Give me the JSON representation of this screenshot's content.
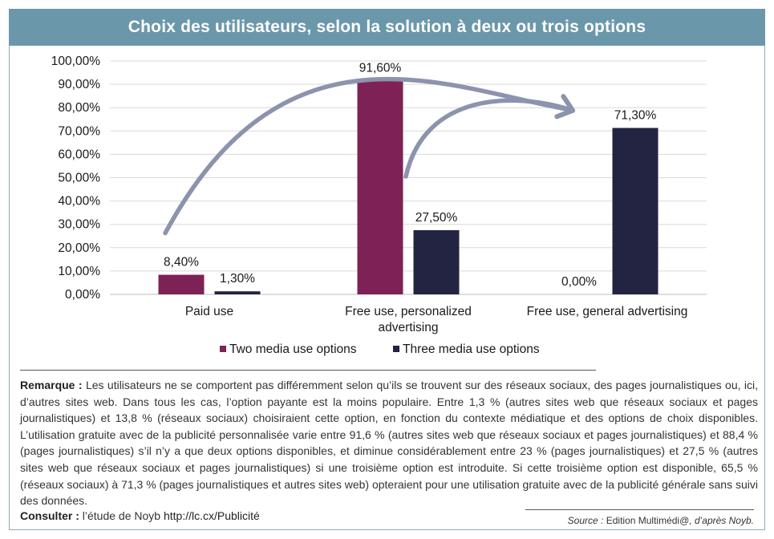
{
  "header": {
    "title": "Choix des utilisateurs, selon la solution à deux ou trois options"
  },
  "chart_data": {
    "type": "bar",
    "categories": [
      "Paid use",
      "Free use, personalized|advertising",
      "Free use, general advertising"
    ],
    "series": [
      {
        "name": "Two media use options",
        "color": "#7e2157",
        "values": [
          8.4,
          91.6,
          null
        ],
        "labels": [
          "8,40%",
          "91,60%",
          "0,00%"
        ]
      },
      {
        "name": "Three media use options",
        "color": "#232342",
        "values": [
          1.3,
          27.5,
          71.3
        ],
        "labels": [
          "1,30%",
          "27,50%",
          "71,30%"
        ]
      }
    ],
    "ylim": [
      0,
      100
    ],
    "yticks": [
      "0,00%",
      "10,00%",
      "20,00%",
      "30,00%",
      "40,00%",
      "50,00%",
      "60,00%",
      "70,00%",
      "80,00%",
      "90,00%",
      "100,00%"
    ],
    "grid": true,
    "legend": "bottom",
    "arrow_color": "#8c93ad"
  },
  "note": {
    "label": "Remarque :",
    "text": "Les utilisateurs ne se comportent pas différemment selon qu’ils se trouvent sur des réseaux sociaux, des pages journalistiques ou, ici, d’autres sites web. Dans tous les cas, l’option payante est la moins populaire. Entre 1,3 % (autres sites web que réseaux sociaux et pages journalistiques) et 13,8 % (réseaux sociaux) choisiraient cette option, en fonction du contexte médiatique et des options de choix disponibles. L’utilisation gratuite avec de la publicité personnalisée varie entre 91,6 % (autres sites web que réseaux sociaux et pages journalistiques) et 88,4 % (pages journalistiques) s’il n’y a que deux options disponibles, et diminue considérablement entre 23 % (pages journalistiques) et 27,5 % (autres sites web que réseaux sociaux et pages journalistiques) si une troisième option est introduite. Si cette troisième option est disponible, 65,5 % (réseaux sociaux) à 71,3 % (pages journalistiques et autres sites web) opteraient pour une utilisation gratuite avec de la publicité générale sans suivi des données."
  },
  "consult": {
    "label": "Consulter :",
    "text": "l’étude de Noyb",
    "url": "http://lc.cx/Publicité"
  },
  "source": {
    "label": "Source :",
    "publisher": "Edition Multimédi@",
    "suffix": ", d’après Noyb."
  }
}
